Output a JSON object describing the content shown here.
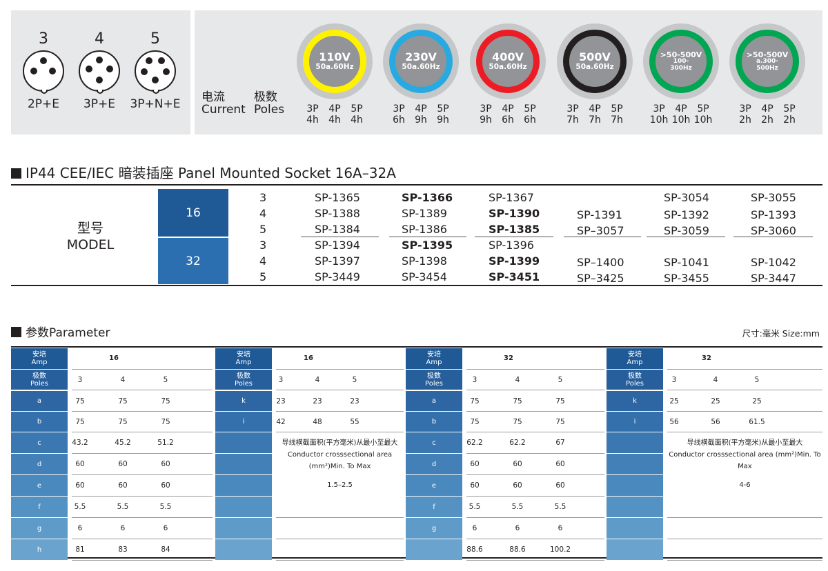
{
  "pins": [
    {
      "count": "3",
      "config": "2P+E"
    },
    {
      "count": "4",
      "config": "3P+E"
    },
    {
      "count": "5",
      "config": "3P+N+E"
    }
  ],
  "left_labels": {
    "current_cn": "电流",
    "current_en": "Current",
    "poles_cn": "极数",
    "poles_en": "Poles"
  },
  "voltages": [
    {
      "v": "110V",
      "f": "50a.60Hz",
      "color": "#fff200",
      "poles": [
        "3P",
        "4P",
        "5P"
      ],
      "hours": [
        "4h",
        "4h",
        "4h"
      ]
    },
    {
      "v": "230V",
      "f": "50a.60Hz",
      "color": "#27aae1",
      "poles": [
        "3P",
        "4P",
        "5P"
      ],
      "hours": [
        "6h",
        "9h",
        "9h"
      ]
    },
    {
      "v": "400V",
      "f": "50a.60Hz",
      "color": "#ed1c24",
      "poles": [
        "3P",
        "4P",
        "5P"
      ],
      "hours": [
        "9h",
        "6h",
        "6h"
      ]
    },
    {
      "v": "500V",
      "f": "50a.60Hz",
      "color": "#231f20",
      "poles": [
        "3P",
        "4P",
        "5P"
      ],
      "hours": [
        "7h",
        "7h",
        "7h"
      ]
    },
    {
      "v": ">50-500V",
      "f": "100-\n300Hz",
      "color": "#00a651",
      "poles": [
        "3P",
        "4P",
        "5P"
      ],
      "hours": [
        "10h",
        "10h",
        "10h"
      ]
    },
    {
      "v": ">50-500V",
      "f": "a.300-\n500Hz",
      "color": "#00a651",
      "poles": [
        "3P",
        "4P",
        "5P"
      ],
      "hours": [
        "2h",
        "2h",
        "2h"
      ]
    }
  ],
  "section1": {
    "title": "IP44 CEE/IEC 暗装插座 Panel Mounted Socket  16A–32A"
  },
  "model": {
    "label_cn": "型号",
    "label_en": "MODEL",
    "amps": [
      "16",
      "32"
    ],
    "rows": [
      {
        "p": "3",
        "c": [
          "SP-1365",
          "SP-1366",
          "SP-1367",
          "",
          "SP-3054",
          "SP-3055"
        ]
      },
      {
        "p": "4",
        "c": [
          "SP-1388",
          "SP-1389",
          "SP-1390",
          "SP-1391",
          "SP-1392",
          "SP-1393"
        ]
      },
      {
        "p": "5",
        "c": [
          "SP-1384",
          "SP-1386",
          "SP-1385",
          "SP–3057",
          "SP-3059",
          "SP-3060"
        ]
      },
      {
        "p": "3",
        "c": [
          "SP-1394",
          "SP-1395",
          "SP-1396",
          "",
          "",
          ""
        ]
      },
      {
        "p": "4",
        "c": [
          "SP-1397",
          "SP-1398",
          "SP-1399",
          "SP–1400",
          "SP-1041",
          "SP-1042"
        ]
      },
      {
        "p": "5",
        "c": [
          "SP-3449",
          "SP-3454",
          "SP-3451",
          "SP–3425",
          "SP-3455",
          "SP-3447"
        ]
      }
    ]
  },
  "section2": {
    "title": "参数Parameter",
    "unit": "尺寸:毫米  Size:mm"
  },
  "params": {
    "amp_cn": "安培",
    "amp_en": "Amp",
    "poles_cn": "极数",
    "poles_en": "Poles",
    "note_cn": "导线横截面积(平方毫米)从最小至最大",
    "note_en": "Conductor crosssectional area (mm²)Min. To Max",
    "blocks": [
      {
        "amp": "16",
        "poles": [
          "3",
          "4",
          "5"
        ],
        "rows": [
          [
            "a",
            "75",
            "75",
            "75"
          ],
          [
            "b",
            "75",
            "75",
            "75"
          ],
          [
            "c",
            "43.2",
            "45.2",
            "51.2"
          ],
          [
            "d",
            "60",
            "60",
            "60"
          ],
          [
            "e",
            "60",
            "60",
            "60"
          ],
          [
            "f",
            "5.5",
            "5.5",
            "5.5"
          ],
          [
            "g",
            "6",
            "6",
            "6"
          ],
          [
            "h",
            "81",
            "83",
            "84"
          ]
        ]
      },
      {
        "amp": "16",
        "poles": [
          "3",
          "4",
          "5"
        ],
        "rows": [
          [
            "k",
            "23",
            "23",
            "23"
          ],
          [
            "i",
            "42",
            "48",
            "55"
          ]
        ],
        "range": "1.5–2.5"
      },
      {
        "amp": "32",
        "poles": [
          "3",
          "4",
          "5"
        ],
        "rows": [
          [
            "a",
            "75",
            "75",
            "75"
          ],
          [
            "b",
            "75",
            "75",
            "75"
          ],
          [
            "c",
            "62.2",
            "62.2",
            "67"
          ],
          [
            "d",
            "60",
            "60",
            "60"
          ],
          [
            "e",
            "60",
            "60",
            "60"
          ],
          [
            "f",
            "5.5",
            "5.5",
            "5.5"
          ],
          [
            "g",
            "6",
            "6",
            "6"
          ],
          [
            "",
            "88.6",
            "88.6",
            "100.2"
          ]
        ]
      },
      {
        "amp": "32",
        "poles": [
          "3",
          "4",
          "5"
        ],
        "rows": [
          [
            "k",
            "25",
            "25",
            "25"
          ],
          [
            "i",
            "56",
            "56",
            "61.5"
          ]
        ],
        "range": "4-6"
      }
    ]
  }
}
